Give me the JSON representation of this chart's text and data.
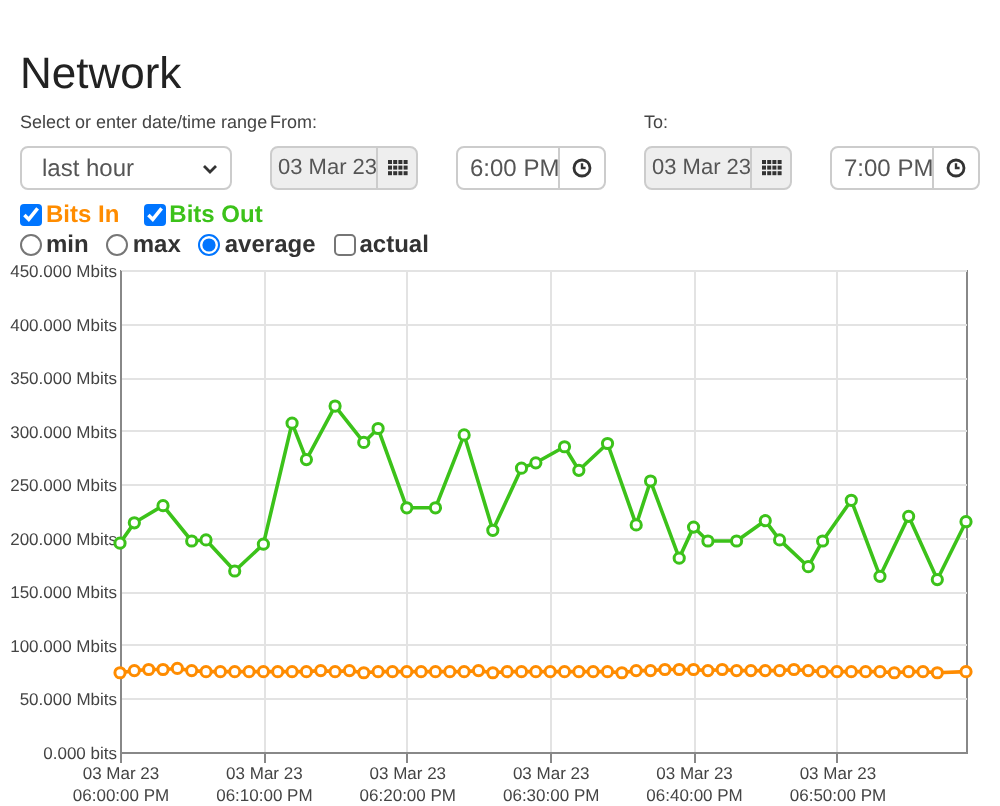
{
  "chart_data": {
    "type": "line",
    "title": "Network",
    "annotations": [
      "Select or enter date/time range",
      "last hour",
      "From:",
      "03 Mar 23",
      "6:00 PM",
      "To:",
      "03 Mar 23",
      "7:00 PM",
      "min",
      "max",
      "average",
      "actual"
    ],
    "series": [
      {
        "name": "Bits In",
        "color": "#ff8c00",
        "x": [
          "--03-03T18:00",
          "--03-03T18:01",
          "--03-03T18:02",
          "--03-03T18:03",
          "--03-03T18:04",
          "--03-03T18:05",
          "--03-03T18:06",
          "--03-03T18:07",
          "--03-03T18:08",
          "--03-03T18:09",
          "--03-03T18:10",
          "--03-03T18:11",
          "--03-03T18:12",
          "--03-03T18:13",
          "--03-03T18:14",
          "--03-03T18:15",
          "--03-03T18:16",
          "--03-03T18:17",
          "--03-03T18:18",
          "--03-03T18:19",
          "--03-03T18:20",
          "--03-03T18:21",
          "--03-03T18:22",
          "--03-03T18:23",
          "--03-03T18:24",
          "--03-03T18:25",
          "--03-03T18:26",
          "--03-03T18:27",
          "--03-03T18:28",
          "--03-03T18:29",
          "--03-03T18:30",
          "--03-03T18:31",
          "--03-03T18:32",
          "--03-03T18:33",
          "--03-03T18:34",
          "--03-03T18:35",
          "--03-03T18:36",
          "--03-03T18:37",
          "--03-03T18:38",
          "--03-03T18:39",
          "--03-03T18:40",
          "--03-03T18:41",
          "--03-03T18:42",
          "--03-03T18:43",
          "--03-03T18:44",
          "--03-03T18:45",
          "--03-03T18:46",
          "--03-03T18:47",
          "--03-03T18:48",
          "--03-03T18:49",
          "--03-03T18:50",
          "--03-03T18:51",
          "--03-03T18:52",
          "--03-03T18:53",
          "--03-03T18:54",
          "--03-03T18:55",
          "--03-03T18:56",
          "--03-03T18:57",
          "--03-03T18:59"
        ],
        "values": [
          74,
          76,
          77,
          77,
          78,
          76,
          75,
          75,
          75,
          75,
          75,
          75,
          75,
          75,
          76,
          75,
          76,
          74,
          75,
          75,
          75,
          75,
          75,
          75,
          75,
          76,
          74,
          75,
          75,
          75,
          75,
          75,
          75,
          75,
          75,
          74,
          76,
          76,
          77,
          77,
          77,
          76,
          77,
          76,
          76,
          76,
          76,
          77,
          76,
          75,
          75,
          75,
          75,
          75,
          74,
          75,
          75,
          74,
          75
        ]
      },
      {
        "name": "Bits Out",
        "color": "#3cc21a",
        "x": [
          "--03-03T18:00",
          "--03-03T18:01",
          "--03-03T18:03",
          "--03-03T18:05",
          "--03-03T18:06",
          "--03-03T18:08",
          "--03-03T18:10",
          "--03-03T18:12",
          "--03-03T18:13",
          "--03-03T18:15",
          "--03-03T18:17",
          "--03-03T18:18",
          "--03-03T18:20",
          "--03-03T18:22",
          "--03-03T18:24",
          "--03-03T18:26",
          "--03-03T18:28",
          "--03-03T18:29",
          "--03-03T18:31",
          "--03-03T18:32",
          "--03-03T18:34",
          "--03-03T18:36",
          "--03-03T18:37",
          "--03-03T18:39",
          "--03-03T18:40",
          "--03-03T18:41",
          "--03-03T18:43",
          "--03-03T18:45",
          "--03-03T18:46",
          "--03-03T18:48",
          "--03-03T18:49",
          "--03-03T18:51",
          "--03-03T18:53",
          "--03-03T18:55",
          "--03-03T18:57",
          "--03-03T18:59"
        ],
        "values": [
          195,
          214,
          230,
          197,
          198,
          169,
          194,
          307,
          273,
          323,
          289,
          302,
          228,
          228,
          296,
          207,
          265,
          270,
          285,
          263,
          288,
          212,
          253,
          181,
          210,
          197,
          197,
          216,
          198,
          173,
          197,
          235,
          164,
          220,
          161,
          215
        ]
      }
    ],
    "xlim": [
      "--03-03T18:00",
      "--03-03T18:59"
    ],
    "xticks": [
      {
        "value": "--03-03T18:00",
        "label": "03 Mar 23\n06:00:00 PM"
      },
      {
        "value": "--03-03T18:10",
        "label": "03 Mar 23\n06:10:00 PM"
      },
      {
        "value": "--03-03T18:20",
        "label": "03 Mar 23\n06:20:00 PM"
      },
      {
        "value": "--03-03T18:30",
        "label": "03 Mar 23\n06:30:00 PM"
      },
      {
        "value": "--03-03T18:40",
        "label": "03 Mar 23\n06:40:00 PM"
      },
      {
        "value": "--03-03T18:50",
        "label": "03 Mar 23\n06:50:00 PM"
      }
    ],
    "ylim": [
      0,
      450
    ],
    "yticks": [
      {
        "value": 0,
        "label": "0.000 bits"
      },
      {
        "value": 50,
        "label": "50.000 Mbits"
      },
      {
        "value": 100,
        "label": "100.000 Mbits"
      },
      {
        "value": 150,
        "label": "150.000 Mbits"
      },
      {
        "value": 200,
        "label": "200.000 Mbits"
      },
      {
        "value": 250,
        "label": "250.000 Mbits"
      },
      {
        "value": 300,
        "label": "300.000 Mbits"
      },
      {
        "value": 350,
        "label": "350.000 Mbits"
      },
      {
        "value": 400,
        "label": "400.000 Mbits"
      },
      {
        "value": 450,
        "label": "450.000 Mbits"
      }
    ],
    "grid": true,
    "legend": "top left",
    "marker": "circle",
    "line_style": "solid"
  }
}
